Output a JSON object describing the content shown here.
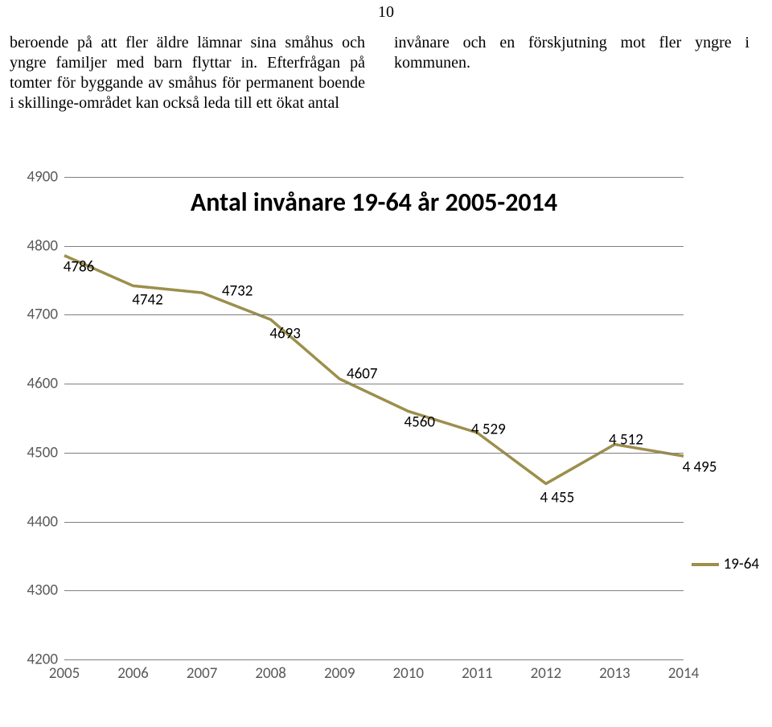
{
  "page_number": "10",
  "text": {
    "col1": "beroende på att fler äldre lämnar sina småhus och yngre familjer med barn flyttar in. Efterfrågan på tomter för byggande av småhus för permanent boende i skillinge-området kan också leda till ett ökat antal",
    "col2": "invånare och en förskjutning mot fler yngre i kommunen."
  },
  "chart": {
    "type": "line",
    "title": "Antal invånare 19-64 år 2005-2014",
    "title_fontsize": 32,
    "title_weight": "bold",
    "title_font": "Calibri",
    "series_name": "19-64",
    "series_color": "#9c8f4c",
    "line_width": 3.5,
    "background_color": "#ffffff",
    "grid_color": "#7f7f7f",
    "axis_label_color": "#595959",
    "axis_label_fontsize": 19,
    "data_label_fontsize": 19,
    "data_label_color": "#000000",
    "x_categories": [
      "2005",
      "2006",
      "2007",
      "2008",
      "2009",
      "2010",
      "2011",
      "2012",
      "2013",
      "2014"
    ],
    "y_ticks": [
      4200,
      4300,
      4400,
      4500,
      4600,
      4700,
      4800,
      4900
    ],
    "ylim": [
      4200,
      4900
    ],
    "values": [
      4786,
      4742,
      4732,
      4693,
      4607,
      4560,
      4529,
      4455,
      4512,
      4495
    ],
    "data_labels": [
      "4786",
      "4742",
      "4732",
      "4693",
      "4607",
      "4560",
      "4 529",
      "4 455",
      "4 512",
      "4 495"
    ],
    "label_dx": [
      18,
      18,
      44,
      18,
      28,
      14,
      14,
      14,
      14,
      20
    ],
    "label_dy": [
      14,
      18,
      -2,
      18,
      -6,
      14,
      -4,
      18,
      -6,
      14
    ],
    "legend_label": "19-64"
  }
}
